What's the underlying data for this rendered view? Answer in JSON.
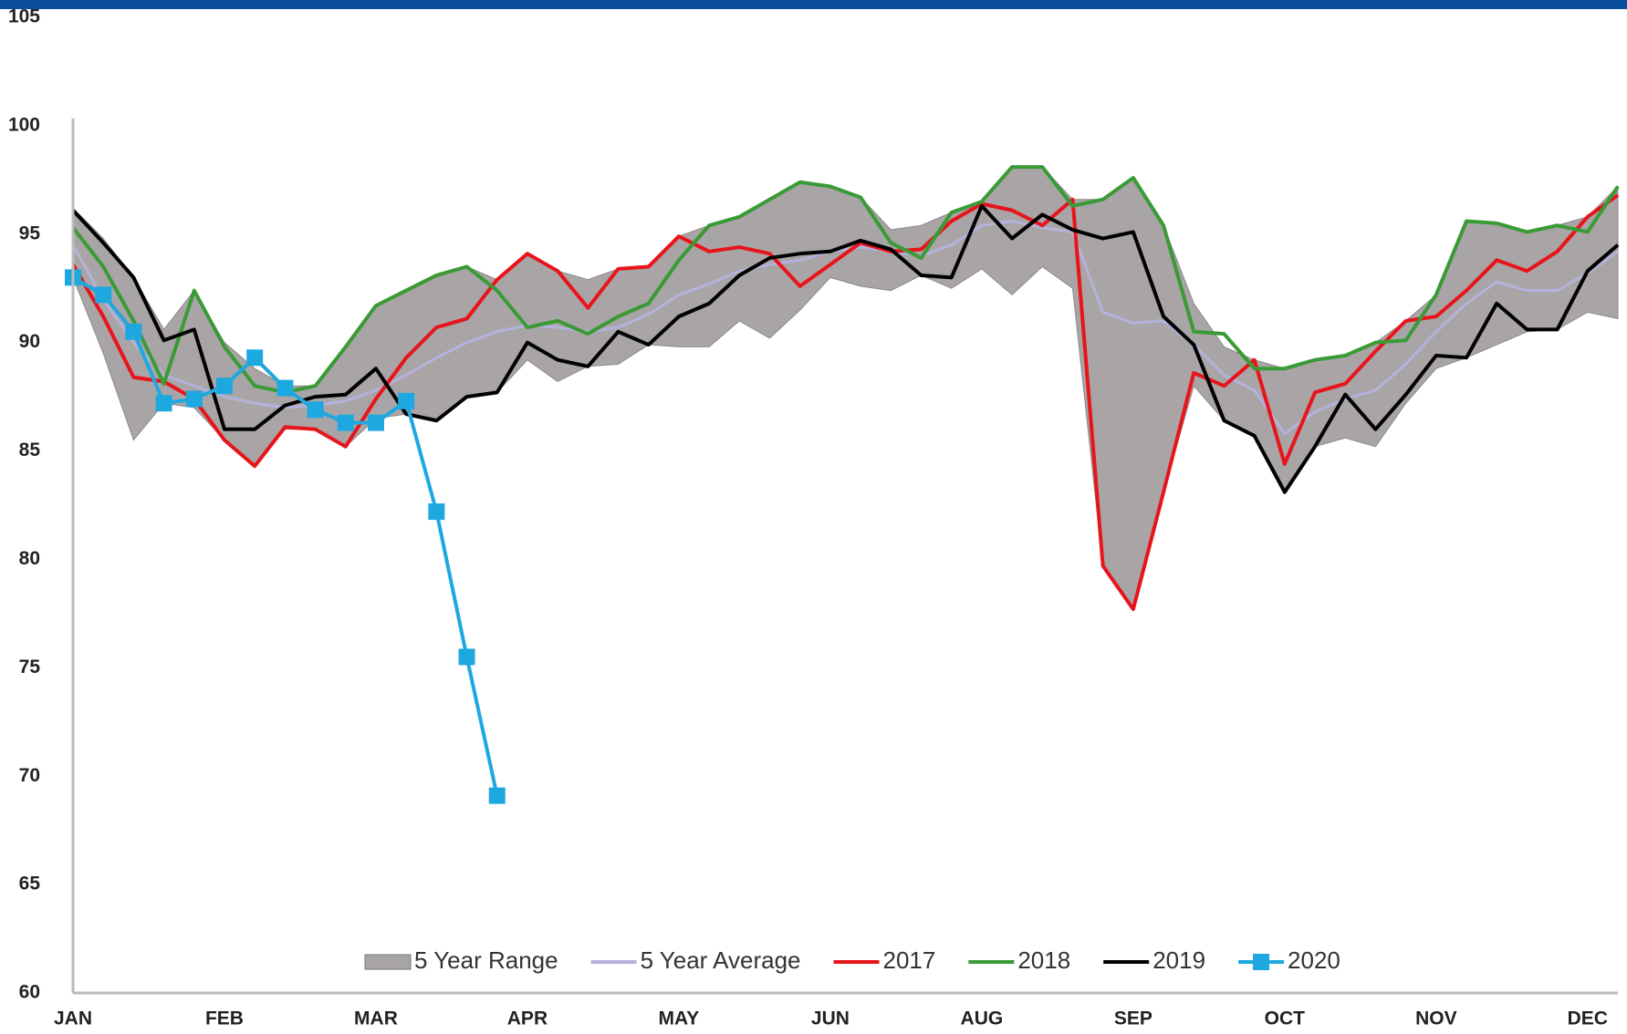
{
  "chart_data": {
    "type": "line",
    "categories": [
      "JAN",
      null,
      null,
      null,
      null,
      "FEB",
      null,
      null,
      null,
      null,
      "MAR",
      null,
      null,
      null,
      null,
      "APR",
      null,
      null,
      null,
      null,
      "MAY",
      null,
      null,
      null,
      null,
      "JUN",
      null,
      null,
      null,
      null,
      "AUG",
      null,
      null,
      null,
      null,
      "SEP",
      null,
      null,
      null,
      null,
      "OCT",
      null,
      null,
      null,
      null,
      "NOV",
      null,
      null,
      null,
      null,
      "DEC",
      null
    ],
    "ylim": [
      60,
      105
    ],
    "yticks": [
      60,
      65,
      70,
      75,
      80,
      85,
      90,
      95,
      100,
      105
    ],
    "grid": false,
    "series": [
      {
        "name": "5 Year Range",
        "color": "#a9a5a6",
        "high": [
          96.2,
          94.8,
          93.0,
          90.6,
          92.4,
          90.0,
          88.8,
          88.0,
          88.0,
          89.8,
          91.7,
          92.4,
          93.1,
          93.5,
          92.9,
          94.1,
          93.3,
          92.9,
          93.4,
          93.5,
          94.9,
          95.4,
          95.8,
          96.6,
          97.4,
          97.2,
          96.7,
          95.2,
          95.4,
          96.0,
          96.5,
          98.1,
          98.1,
          96.6,
          96.6,
          97.6,
          95.4,
          91.8,
          89.8,
          89.2,
          88.8,
          89.2,
          89.4,
          90.0,
          91.0,
          92.2,
          95.6,
          95.5,
          95.1,
          95.4,
          95.8,
          97.2
        ],
        "low": [
          93.0,
          89.5,
          85.5,
          87.2,
          87.0,
          85.5,
          84.3,
          86.0,
          86.0,
          85.2,
          86.5,
          86.7,
          86.4,
          87.5,
          87.7,
          89.2,
          88.2,
          88.9,
          89.0,
          89.9,
          89.8,
          89.8,
          91.0,
          90.2,
          91.5,
          93.0,
          92.6,
          92.4,
          93.1,
          92.5,
          93.4,
          92.2,
          93.5,
          92.5,
          79.7,
          77.7,
          83.1,
          88.0,
          86.4,
          85.7,
          83.1,
          85.2,
          85.6,
          85.2,
          87.2,
          88.8,
          89.3,
          89.9,
          90.5,
          90.6,
          91.4,
          91.1
        ]
      },
      {
        "name": "5 Year Average",
        "color": "#b4b2dc",
        "values": [
          94.5,
          92.0,
          90.0,
          88.5,
          88.0,
          87.5,
          87.2,
          87.0,
          87.1,
          87.3,
          87.8,
          88.5,
          89.3,
          90.0,
          90.5,
          90.8,
          90.7,
          90.5,
          90.7,
          91.3,
          92.2,
          92.7,
          93.3,
          93.6,
          93.8,
          94.2,
          94.4,
          94.2,
          94.0,
          94.5,
          95.4,
          95.6,
          95.3,
          95.1,
          91.4,
          90.9,
          91.0,
          89.9,
          88.5,
          87.8,
          85.8,
          86.8,
          87.4,
          87.8,
          89.0,
          90.5,
          91.8,
          92.8,
          92.4,
          92.4,
          93.2,
          94.2
        ]
      },
      {
        "name": "2017",
        "color": "#e8141b",
        "values": [
          93.6,
          91.2,
          88.4,
          88.2,
          87.4,
          85.5,
          84.3,
          86.1,
          86.0,
          85.2,
          87.4,
          89.3,
          90.7,
          91.1,
          92.9,
          94.1,
          93.3,
          91.6,
          93.4,
          93.5,
          94.9,
          94.2,
          94.4,
          94.1,
          92.6,
          93.6,
          94.6,
          94.2,
          94.3,
          95.6,
          96.4,
          96.1,
          95.4,
          96.6,
          79.7,
          77.7,
          83.1,
          88.6,
          88.0,
          89.2,
          84.4,
          87.7,
          88.1,
          89.6,
          91.0,
          91.2,
          92.4,
          93.8,
          93.3,
          94.2,
          95.8,
          96.8
        ]
      },
      {
        "name": "2018",
        "color": "#3a9a35",
        "values": [
          95.3,
          93.5,
          91.0,
          88.1,
          92.4,
          89.8,
          88.0,
          87.7,
          88.0,
          89.8,
          91.7,
          92.4,
          93.1,
          93.5,
          92.4,
          90.7,
          91.0,
          90.4,
          91.2,
          91.8,
          93.8,
          95.4,
          95.8,
          96.6,
          97.4,
          97.2,
          96.7,
          94.6,
          93.9,
          96.0,
          96.5,
          98.1,
          98.1,
          96.3,
          96.6,
          97.6,
          95.4,
          90.5,
          90.4,
          88.8,
          88.8,
          89.2,
          89.4,
          90.0,
          90.1,
          92.2,
          95.6,
          95.5,
          95.1,
          95.4,
          95.1,
          97.2
        ]
      },
      {
        "name": "2019",
        "color": "#000000",
        "values": [
          96.1,
          94.6,
          93.0,
          90.1,
          90.6,
          86.0,
          86.0,
          87.1,
          87.5,
          87.6,
          88.8,
          86.7,
          86.4,
          87.5,
          87.7,
          90.0,
          89.2,
          88.9,
          90.5,
          89.9,
          91.2,
          91.8,
          93.1,
          93.9,
          94.1,
          94.2,
          94.7,
          94.3,
          93.1,
          93.0,
          96.3,
          94.8,
          95.9,
          95.2,
          94.8,
          95.1,
          91.2,
          89.9,
          86.4,
          85.7,
          83.1,
          85.2,
          87.6,
          86.0,
          87.6,
          89.4,
          89.3,
          91.8,
          90.6,
          90.6,
          93.3,
          94.5
        ]
      },
      {
        "name": "2020",
        "color": "#1ea8e0",
        "marker": "square",
        "values": [
          93.0,
          92.2,
          90.5,
          87.2,
          87.4,
          88.0,
          89.3,
          87.9,
          86.9,
          86.3,
          86.3,
          87.3,
          82.2,
          75.5,
          69.1,
          null,
          null,
          null,
          null,
          null,
          null,
          null,
          null,
          null,
          null,
          null,
          null,
          null,
          null,
          null,
          null,
          null,
          null,
          null,
          null,
          null,
          null,
          null,
          null,
          null,
          null,
          null,
          null,
          null,
          null,
          null,
          null,
          null,
          null,
          null,
          null,
          null
        ]
      }
    ]
  }
}
